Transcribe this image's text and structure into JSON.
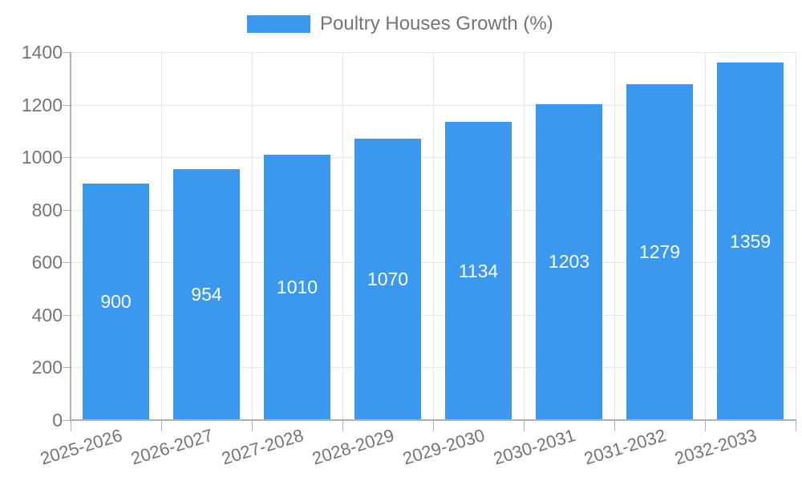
{
  "legend": {
    "swatch_color": "#3a99ee"
  },
  "chart_data": {
    "type": "bar",
    "title": "Poultry Houses Growth (%)",
    "categories": [
      "2025-2026",
      "2026-2027",
      "2027-2028",
      "2028-2029",
      "2029-2030",
      "2030-2031",
      "2031-2032",
      "2032-2033"
    ],
    "values": [
      900,
      954,
      1010,
      1070,
      1134,
      1203,
      1279,
      1359
    ],
    "bar_labels": [
      "900",
      "954",
      "1010",
      "1070",
      "1134",
      "1203",
      "1279",
      "1359"
    ],
    "xlabel": "",
    "ylabel": "",
    "ylim": [
      0,
      1400
    ],
    "yticks": [
      0,
      200,
      400,
      600,
      800,
      1000,
      1200,
      1400
    ],
    "ytick_labels": [
      "0",
      "200",
      "400",
      "600",
      "800",
      "1000",
      "1200",
      "1400"
    ],
    "grid": true,
    "legend_position": "top-center",
    "colors": {
      "bar": "#3a99ee",
      "bar_label": "#ffffff",
      "axis_text": "#757575",
      "gridline": "#e6e6e6",
      "axis_line": "#b0b0b0"
    }
  }
}
